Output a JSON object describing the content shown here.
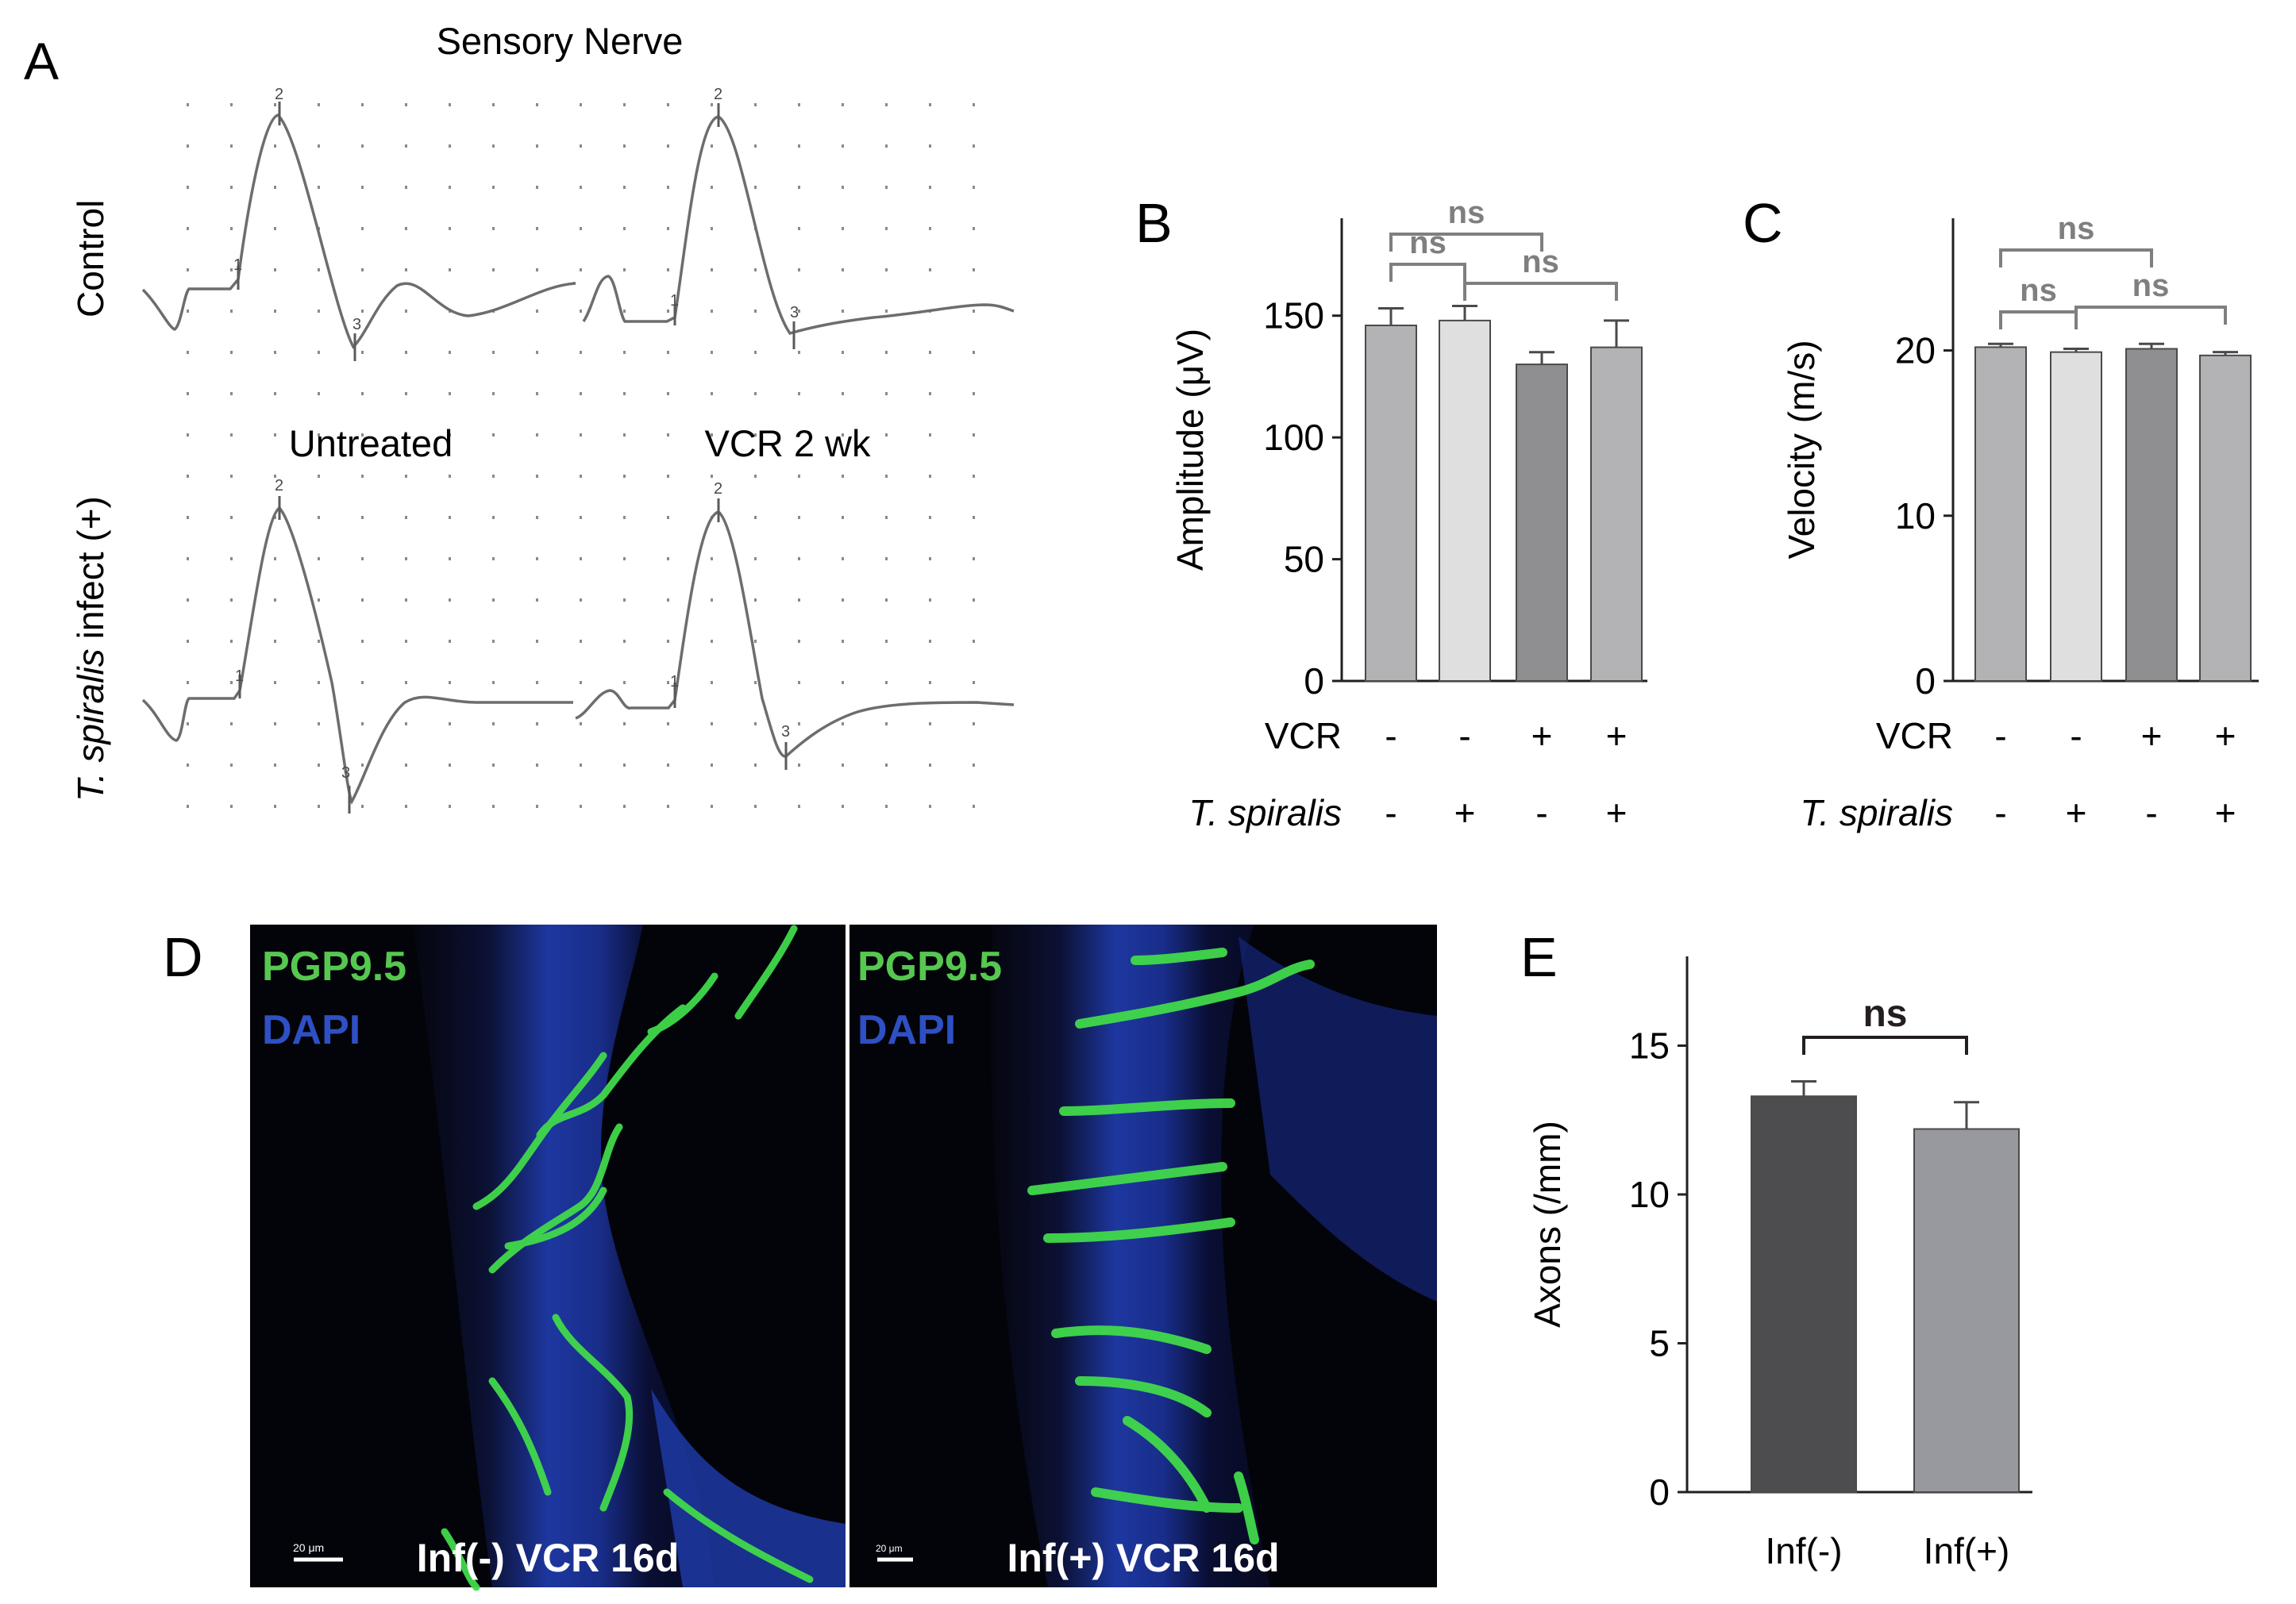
{
  "panel_a": {
    "letter": "A",
    "title": "Sensory Nerve",
    "row_labels": [
      "Control",
      "infect (+)"
    ],
    "row_label_italic_prefix": "T. spiralis",
    "column_labels": [
      "Untreated",
      "VCR 2 wk"
    ],
    "markers": [
      "1",
      "2",
      "3"
    ]
  },
  "panel_d": {
    "letter": "D",
    "images": [
      {
        "stain_primary": "PGP9.5",
        "stain_secondary": "DAPI",
        "caption": "Inf(-) VCR 16d",
        "scale_label": "20 μm"
      },
      {
        "stain_primary": "PGP9.5",
        "stain_secondary": "DAPI",
        "caption": "Inf(+) VCR 16d",
        "scale_label": "20 μm"
      }
    ]
  },
  "colors": {
    "bar_light": "#b3b3b5",
    "bar_lighter": "#dfdfe0",
    "bar_mid": "#8f8f91",
    "bar_dark": "#4d4d4f",
    "bar_gray": "#98989f",
    "sig_bracket": "#7f7f7f",
    "pgp_green": "#3fd94a",
    "dapi_blue": "#2d4fc8"
  },
  "chart_data": [
    {
      "panel": "B",
      "type": "bar",
      "ylabel": "Amplitude (μV)",
      "ylim": [
        0,
        190
      ],
      "yticks": [
        0,
        50,
        100,
        150
      ],
      "categories": [
        "1",
        "2",
        "3",
        "4"
      ],
      "values": [
        146,
        148,
        130,
        137
      ],
      "errors": [
        7,
        6,
        5,
        11
      ],
      "row_labels": [
        "VCR",
        "T. spiralis"
      ],
      "conditions": [
        [
          "-",
          "-",
          "+",
          "+"
        ],
        [
          "-",
          "+",
          "-",
          "+"
        ]
      ],
      "significance": [
        {
          "from": 0,
          "to": 1,
          "label": "ns"
        },
        {
          "from": 1,
          "to": 3,
          "label": "ns"
        },
        {
          "from": 0,
          "to": 2,
          "label": "ns"
        }
      ]
    },
    {
      "panel": "C",
      "type": "bar",
      "ylabel": "Velocity (m/s)",
      "ylim": [
        0,
        28
      ],
      "yticks": [
        0,
        10,
        20
      ],
      "categories": [
        "1",
        "2",
        "3",
        "4"
      ],
      "values": [
        20.2,
        19.9,
        20.1,
        19.7
      ],
      "errors": [
        0.2,
        0.2,
        0.3,
        0.2
      ],
      "row_labels": [
        "VCR",
        "T. spiralis"
      ],
      "conditions": [
        [
          "-",
          "-",
          "+",
          "+"
        ],
        [
          "-",
          "+",
          "-",
          "+"
        ]
      ],
      "significance": [
        {
          "from": 0,
          "to": 1,
          "label": "ns"
        },
        {
          "from": 1,
          "to": 3,
          "label": "ns"
        },
        {
          "from": 0,
          "to": 2,
          "label": "ns"
        }
      ]
    },
    {
      "panel": "E",
      "type": "bar",
      "ylabel": "Axons (/mm)",
      "ylim": [
        0,
        18
      ],
      "yticks": [
        0,
        5,
        10,
        15
      ],
      "categories": [
        "Inf(-)",
        "Inf(+)"
      ],
      "values": [
        13.3,
        12.2
      ],
      "errors": [
        0.5,
        0.9
      ],
      "significance": [
        {
          "from": 0,
          "to": 1,
          "label": "ns"
        }
      ]
    }
  ]
}
